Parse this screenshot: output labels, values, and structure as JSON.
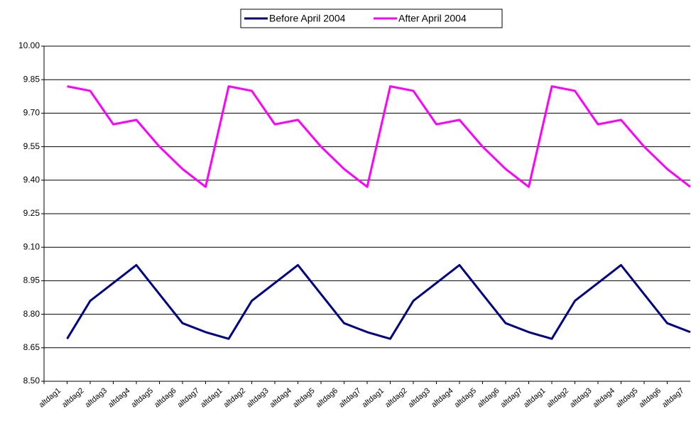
{
  "chart_data": {
    "type": "line",
    "categories": [
      "altdag1",
      "altdag2",
      "altdag3",
      "altdag4",
      "altdag5",
      "altdag6",
      "altdag7",
      "altdag1",
      "altdag2",
      "altdag3",
      "altdag4",
      "altdag5",
      "altdag6",
      "altdag7",
      "altdag1",
      "altdag2",
      "altdag3",
      "altdag4",
      "altdag5",
      "altdag6",
      "altdag7",
      "altdag1",
      "altdag2",
      "altdag3",
      "altdag4",
      "altdag5",
      "altdag6",
      "altdag7"
    ],
    "series": [
      {
        "name": "Before April 2004",
        "color": "#000080",
        "values": [
          8.69,
          8.86,
          8.94,
          9.02,
          8.89,
          8.76,
          8.72,
          8.69,
          8.86,
          8.94,
          9.02,
          8.89,
          8.76,
          8.72,
          8.69,
          8.86,
          8.94,
          9.02,
          8.89,
          8.76,
          8.72,
          8.69,
          8.86,
          8.94,
          9.02,
          8.89,
          8.76,
          8.72
        ]
      },
      {
        "name": "After April 2004",
        "color": "#ff00ff",
        "values": [
          9.82,
          9.8,
          9.65,
          9.67,
          9.55,
          9.45,
          9.37,
          9.82,
          9.8,
          9.65,
          9.67,
          9.55,
          9.45,
          9.37,
          9.82,
          9.8,
          9.65,
          9.67,
          9.55,
          9.45,
          9.37,
          9.82,
          9.8,
          9.65,
          9.67,
          9.55,
          9.45,
          9.37
        ]
      }
    ],
    "ylim": [
      8.5,
      10.0
    ],
    "yticks": [
      {
        "value": 8.5,
        "label": "8.50"
      },
      8.65,
      {
        "value": 8.8,
        "label": "8.80"
      },
      8.95,
      {
        "value": 9.1,
        "label": "9.10"
      },
      9.25,
      {
        "value": 9.4,
        "label": "9.40"
      },
      9.55,
      {
        "value": 9.7,
        "label": "9.70"
      },
      9.85,
      {
        "value": 10.0,
        "label": "10.00"
      }
    ],
    "grid": true,
    "legend": "top"
  }
}
